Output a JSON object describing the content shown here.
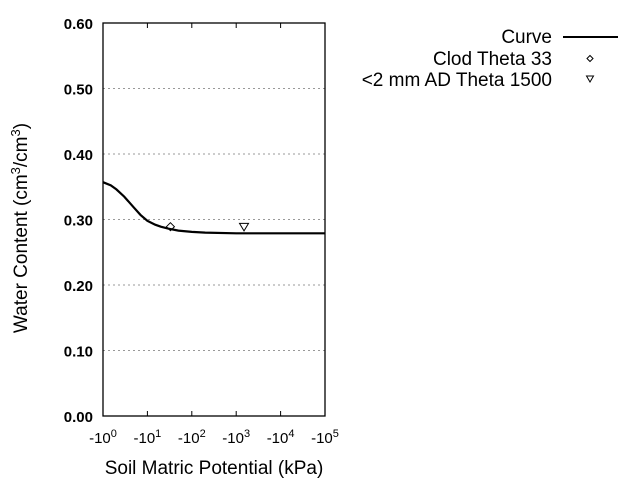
{
  "chart_data": {
    "type": "line",
    "title": "",
    "xlabel": "Soil Matric Potential (kPa)",
    "ylabel": "Water Content (cm3/cm3)",
    "x_scale": "log (negative)",
    "xlim": [
      -1,
      -100000
    ],
    "ylim": [
      0.0,
      0.6
    ],
    "grid": "horizontal dotted",
    "legend_position": "top-right outside",
    "y_ticks": [
      "0.00",
      "0.10",
      "0.20",
      "0.30",
      "0.40",
      "0.50",
      "0.60"
    ],
    "x_ticks": [
      {
        "base": "-10",
        "exp": "0"
      },
      {
        "base": "-10",
        "exp": "1"
      },
      {
        "base": "-10",
        "exp": "2"
      },
      {
        "base": "-10",
        "exp": "3"
      },
      {
        "base": "-10",
        "exp": "4"
      },
      {
        "base": "-10",
        "exp": "5"
      }
    ],
    "series": [
      {
        "name": "Curve",
        "style": "line",
        "x": [
          -1,
          -1.5,
          -2,
          -3,
          -5,
          -7,
          -10,
          -15,
          -20,
          -30,
          -50,
          -100,
          -200,
          -1000,
          -10000,
          -100000
        ],
        "values": [
          0.357,
          0.352,
          0.346,
          0.335,
          0.318,
          0.307,
          0.298,
          0.292,
          0.289,
          0.286,
          0.283,
          0.281,
          0.28,
          0.279,
          0.279,
          0.279
        ]
      },
      {
        "name": "Clod Theta 33",
        "style": "marker-diamond",
        "x": [
          -33
        ],
        "values": [
          0.289
        ]
      },
      {
        "name": "<2 mm AD Theta 1500",
        "style": "marker-triangle-down",
        "x": [
          -1500
        ],
        "values": [
          0.288
        ]
      }
    ]
  },
  "legend": {
    "items": [
      {
        "label": "Curve"
      },
      {
        "label": "Clod Theta 33"
      },
      {
        "label": "<2 mm AD Theta 1500"
      }
    ]
  },
  "axes": {
    "xlabel": "Soil Matric Potential (kPa)",
    "ylabel_main": "Water Content (cm",
    "ylabel_sup1": "3",
    "ylabel_mid": "/cm",
    "ylabel_sup2": "3",
    "ylabel_end": ")"
  }
}
